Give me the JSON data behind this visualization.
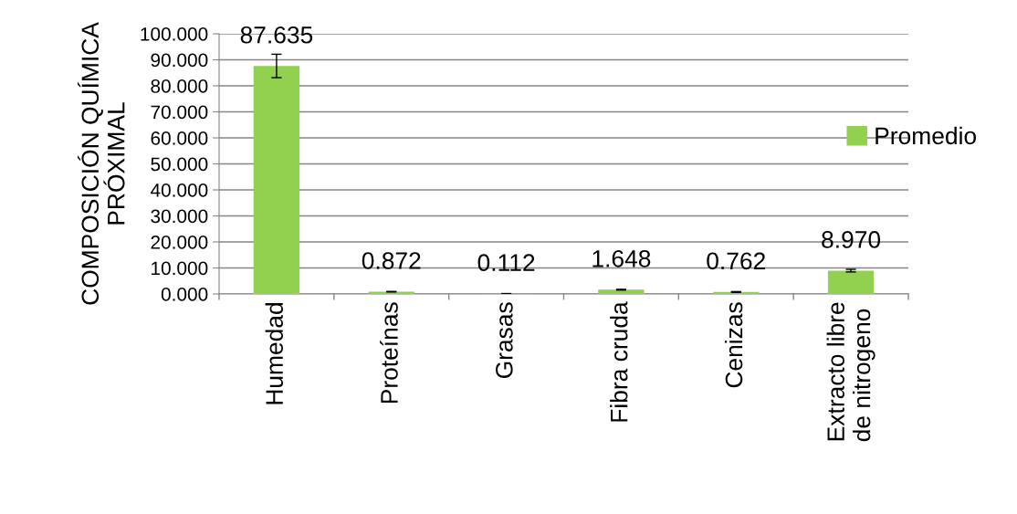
{
  "chart_data": {
    "type": "bar",
    "ylabel": "COMPOSICIÓN QUÍMICA\nPRÓXIMAL",
    "categories": [
      "Humedad",
      "Proteínas",
      "Grasas",
      "Fibra cruda",
      "Cenizas",
      "Extracto libre\nde nitrogeno"
    ],
    "series": [
      {
        "name": "Promedio",
        "color": "#92d050",
        "values": [
          87.635,
          0.872,
          0.112,
          1.648,
          0.762,
          8.97
        ],
        "errors": [
          4.5,
          0.1,
          0.05,
          0.15,
          0.15,
          0.5
        ],
        "value_labels": [
          "87.635",
          "0.872",
          "0.112",
          "1.648",
          "0.762",
          "8.970"
        ]
      }
    ],
    "ylim": [
      0,
      100
    ],
    "yticks": [
      {
        "value": 0,
        "label": "0.000"
      },
      {
        "value": 10,
        "label": "10.000"
      },
      {
        "value": 20,
        "label": "20.000"
      },
      {
        "value": 30,
        "label": "30.000"
      },
      {
        "value": 40,
        "label": "40.000"
      },
      {
        "value": 50,
        "label": "50.000"
      },
      {
        "value": 60,
        "label": "60.000"
      },
      {
        "value": 70,
        "label": "70.000"
      },
      {
        "value": 80,
        "label": "80.000"
      },
      {
        "value": 90,
        "label": "90.000"
      },
      {
        "value": 100,
        "label": "100.000"
      }
    ],
    "grid": "y",
    "legend": "right"
  }
}
